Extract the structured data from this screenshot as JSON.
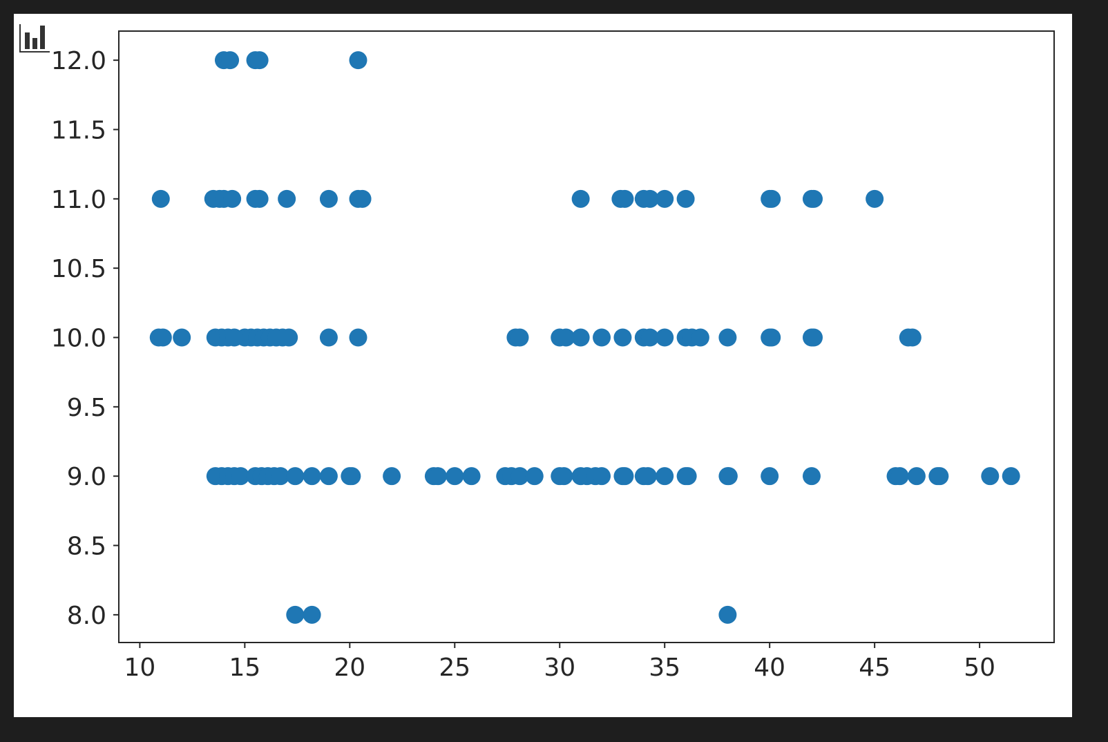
{
  "toolbar": {
    "icon": "bar-chart-icon"
  },
  "chart_data": {
    "type": "scatter",
    "title": "",
    "xlabel": "",
    "ylabel": "",
    "xlim": [
      9.0,
      53.55
    ],
    "ylim": [
      7.8,
      12.21
    ],
    "grid": false,
    "marker_color": "#1f77b4",
    "xticks": [
      10,
      15,
      20,
      25,
      30,
      35,
      40,
      45,
      50
    ],
    "xtick_labels": [
      "10",
      "15",
      "20",
      "25",
      "30",
      "35",
      "40",
      "45",
      "50"
    ],
    "yticks": [
      8.0,
      8.5,
      9.0,
      9.5,
      10.0,
      10.5,
      11.0,
      11.5,
      12.0
    ],
    "ytick_labels": [
      "8.0",
      "8.5",
      "9.0",
      "9.5",
      "10.0",
      "10.5",
      "11.0",
      "11.5",
      "12.0"
    ],
    "series": [
      {
        "points": [
          [
            14.0,
            12
          ],
          [
            14.3,
            12
          ],
          [
            15.5,
            12
          ],
          [
            15.7,
            12
          ],
          [
            20.4,
            12
          ],
          [
            11,
            11
          ],
          [
            13.5,
            11
          ],
          [
            13.8,
            11
          ],
          [
            14.0,
            11
          ],
          [
            14.4,
            11
          ],
          [
            15.5,
            11
          ],
          [
            15.7,
            11
          ],
          [
            17,
            11
          ],
          [
            19,
            11
          ],
          [
            20.4,
            11
          ],
          [
            20.6,
            11
          ],
          [
            31,
            11
          ],
          [
            32.9,
            11
          ],
          [
            33.1,
            11
          ],
          [
            34,
            11
          ],
          [
            34.3,
            11
          ],
          [
            35,
            11
          ],
          [
            36,
            11
          ],
          [
            40,
            11
          ],
          [
            40.1,
            11
          ],
          [
            42,
            11
          ],
          [
            42.1,
            11
          ],
          [
            45,
            11
          ],
          [
            10.9,
            10
          ],
          [
            11.1,
            10
          ],
          [
            12,
            10
          ],
          [
            13.6,
            10
          ],
          [
            13.9,
            10
          ],
          [
            14.2,
            10
          ],
          [
            14.5,
            10
          ],
          [
            15,
            10
          ],
          [
            15.3,
            10
          ],
          [
            15.6,
            10
          ],
          [
            15.9,
            10
          ],
          [
            16.2,
            10
          ],
          [
            16.5,
            10
          ],
          [
            16.8,
            10
          ],
          [
            17.1,
            10
          ],
          [
            19,
            10
          ],
          [
            20.4,
            10
          ],
          [
            27.9,
            10
          ],
          [
            28.1,
            10
          ],
          [
            30,
            10
          ],
          [
            30.3,
            10
          ],
          [
            31,
            10
          ],
          [
            32,
            10
          ],
          [
            33,
            10
          ],
          [
            34,
            10
          ],
          [
            34.3,
            10
          ],
          [
            35,
            10
          ],
          [
            36,
            10
          ],
          [
            36.3,
            10
          ],
          [
            36.7,
            10
          ],
          [
            38,
            10
          ],
          [
            40,
            10
          ],
          [
            40.1,
            10
          ],
          [
            42,
            10
          ],
          [
            42.1,
            10
          ],
          [
            46.6,
            10
          ],
          [
            46.8,
            10
          ],
          [
            13.6,
            9
          ],
          [
            13.9,
            9
          ],
          [
            14.2,
            9
          ],
          [
            14.5,
            9
          ],
          [
            14.8,
            9
          ],
          [
            15.5,
            9
          ],
          [
            15.8,
            9
          ],
          [
            16.1,
            9
          ],
          [
            16.4,
            9
          ],
          [
            16.7,
            9
          ],
          [
            17.4,
            9
          ],
          [
            18.2,
            9
          ],
          [
            19,
            9
          ],
          [
            20,
            9
          ],
          [
            20.1,
            9
          ],
          [
            22,
            9
          ],
          [
            24,
            9
          ],
          [
            24.2,
            9
          ],
          [
            25,
            9
          ],
          [
            25.8,
            9
          ],
          [
            27.4,
            9
          ],
          [
            27.7,
            9
          ],
          [
            28.1,
            9
          ],
          [
            28.8,
            9
          ],
          [
            30,
            9
          ],
          [
            30.2,
            9
          ],
          [
            31,
            9
          ],
          [
            31.3,
            9
          ],
          [
            31.7,
            9
          ],
          [
            32,
            9
          ],
          [
            33,
            9
          ],
          [
            33.1,
            9
          ],
          [
            34,
            9
          ],
          [
            34.2,
            9
          ],
          [
            35,
            9
          ],
          [
            36,
            9
          ],
          [
            36.1,
            9
          ],
          [
            38,
            9
          ],
          [
            38.05,
            9
          ],
          [
            40,
            9
          ],
          [
            42,
            9
          ],
          [
            46,
            9
          ],
          [
            46.2,
            9
          ],
          [
            47,
            9
          ],
          [
            48,
            9
          ],
          [
            48.1,
            9
          ],
          [
            50.5,
            9
          ],
          [
            51.5,
            9
          ],
          [
            17.4,
            8
          ],
          [
            18.2,
            8
          ],
          [
            38,
            8
          ]
        ]
      }
    ]
  }
}
